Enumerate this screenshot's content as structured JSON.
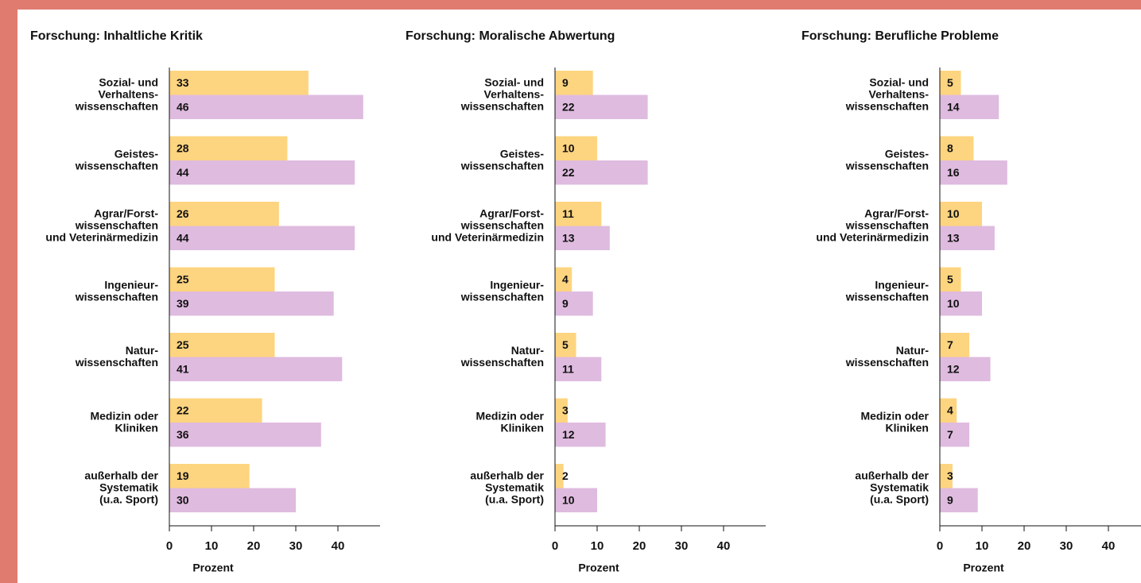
{
  "chart_data": [
    {
      "type": "bar",
      "title": "Forschung: Inhaltliche Kritik",
      "xlabel": "Prozent",
      "categories": [
        "Sozial- und\nVerhaltens-\nwissenschaften",
        "Geistes-\nwissenschaften",
        "Agrar/Forst-\nwissenschaften\nund Veterinärmedizin",
        "Ingenieur-\nwissenschaften",
        "Natur-\nwissenschaften",
        "Medizin oder\nKliniken",
        "außerhalb der\nSystematik\n(u.a. Sport)"
      ],
      "series": [
        {
          "color": "#fdd47f",
          "values": [
            33,
            28,
            26,
            25,
            25,
            22,
            19
          ]
        },
        {
          "color": "#dfbbdf",
          "values": [
            46,
            44,
            44,
            39,
            41,
            36,
            30
          ]
        }
      ],
      "xlim": [
        0,
        50
      ],
      "xticks": [
        0,
        10,
        20,
        30,
        40
      ]
    },
    {
      "type": "bar",
      "title": "Forschung: Moralische Abwertung",
      "xlabel": "Prozent",
      "categories": [
        "Sozial- und\nVerhaltens-\nwissenschaften",
        "Geistes-\nwissenschaften",
        "Agrar/Forst-\nwissenschaften\nund Veterinärmedizin",
        "Ingenieur-\nwissenschaften",
        "Natur-\nwissenschaften",
        "Medizin oder\nKliniken",
        "außerhalb der\nSystematik\n(u.a. Sport)"
      ],
      "series": [
        {
          "color": "#fdd47f",
          "values": [
            9,
            10,
            11,
            4,
            5,
            3,
            2
          ]
        },
        {
          "color": "#dfbbdf",
          "values": [
            22,
            22,
            13,
            9,
            11,
            12,
            10
          ]
        }
      ],
      "xlim": [
        0,
        50
      ],
      "xticks": [
        0,
        10,
        20,
        30,
        40
      ]
    },
    {
      "type": "bar",
      "title": "Forschung: Berufliche Probleme",
      "xlabel": "Prozent",
      "categories": [
        "Sozial- und\nVerhaltens-\nwissenschaften",
        "Geistes-\nwissenschaften",
        "Agrar/Forst-\nwissenschaften\nund Veterinärmedizin",
        "Ingenieur-\nwissenschaften",
        "Natur-\nwissenschaften",
        "Medizin oder\nKliniken",
        "außerhalb der\nSystematik\n(u.a. Sport)"
      ],
      "series": [
        {
          "color": "#fdd47f",
          "values": [
            5,
            8,
            10,
            5,
            7,
            4,
            3
          ]
        },
        {
          "color": "#dfbbdf",
          "values": [
            14,
            16,
            13,
            10,
            12,
            7,
            9
          ]
        }
      ],
      "xlim": [
        0,
        50
      ],
      "xticks": [
        0,
        10,
        20,
        30,
        40
      ]
    }
  ]
}
